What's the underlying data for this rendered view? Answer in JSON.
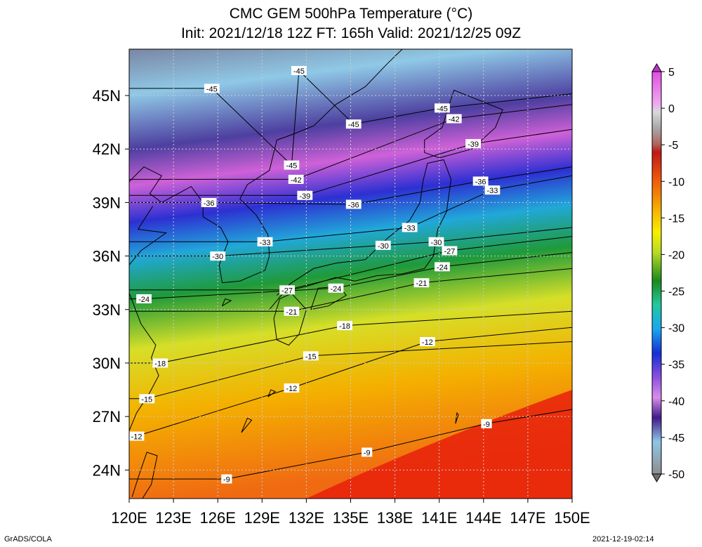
{
  "title": {
    "line1": "CMC GEM 500hPa Temperature (°C)",
    "line2": "Init: 2021/12/18 12Z  FT: 165h  Valid: 2021/12/25 09Z"
  },
  "footer": {
    "left": "GrADS/COLA",
    "right": "2021-12-19-02:14"
  },
  "chart_data": {
    "type": "heatmap",
    "variable": "500hPa Temperature (°C)",
    "xlabels": [
      "120E",
      "123E",
      "126E",
      "129E",
      "132E",
      "135E",
      "138E",
      "141E",
      "144E",
      "147E",
      "150E"
    ],
    "ylabels": [
      "45N",
      "42N",
      "39N",
      "36N",
      "33N",
      "30N",
      "27N",
      "24N"
    ],
    "lon_range": [
      120,
      150
    ],
    "lat_range": [
      22.4,
      47.6
    ],
    "color_range": [
      -50,
      5
    ],
    "colorbar_labels": [
      "5",
      "0",
      "-5",
      "-10",
      "-15",
      "-20",
      "-25",
      "-30",
      "-35",
      "-40",
      "-45",
      "-50"
    ],
    "contour_levels": [
      -9,
      -12,
      -15,
      -18,
      -21,
      -24,
      -27,
      -30,
      -33,
      -36,
      -39,
      -42,
      -45
    ],
    "contour_labels": [
      {
        "text": "-45",
        "lon": 131.5,
        "lat": 46.4
      },
      {
        "text": "-45",
        "lon": 125.6,
        "lat": 45.4
      },
      {
        "text": "-45",
        "lon": 135.2,
        "lat": 43.4
      },
      {
        "text": "-45",
        "lon": 131.0,
        "lat": 41.1
      },
      {
        "text": "-45",
        "lon": 141.2,
        "lat": 44.3
      },
      {
        "text": "-42",
        "lon": 142.0,
        "lat": 43.7
      },
      {
        "text": "-42",
        "lon": 131.3,
        "lat": 40.3
      },
      {
        "text": "-39",
        "lon": 143.3,
        "lat": 42.3
      },
      {
        "text": "-39",
        "lon": 131.9,
        "lat": 39.4
      },
      {
        "text": "-36",
        "lon": 143.8,
        "lat": 40.2
      },
      {
        "text": "-36",
        "lon": 125.4,
        "lat": 39.0
      },
      {
        "text": "-36",
        "lon": 135.2,
        "lat": 38.9
      },
      {
        "text": "-33",
        "lon": 144.6,
        "lat": 39.7
      },
      {
        "text": "-33",
        "lon": 139.0,
        "lat": 37.6
      },
      {
        "text": "-33",
        "lon": 129.2,
        "lat": 36.8
      },
      {
        "text": "-30",
        "lon": 140.8,
        "lat": 36.8
      },
      {
        "text": "-30",
        "lon": 137.2,
        "lat": 36.6
      },
      {
        "text": "-30",
        "lon": 126.0,
        "lat": 36.0
      },
      {
        "text": "-27",
        "lon": 141.7,
        "lat": 36.3
      },
      {
        "text": "-27",
        "lon": 130.7,
        "lat": 34.1
      },
      {
        "text": "-24",
        "lon": 141.2,
        "lat": 35.4
      },
      {
        "text": "-24",
        "lon": 134.0,
        "lat": 34.2
      },
      {
        "text": "-24",
        "lon": 121.0,
        "lat": 33.6
      },
      {
        "text": "-21",
        "lon": 139.8,
        "lat": 34.5
      },
      {
        "text": "-21",
        "lon": 131.0,
        "lat": 32.9
      },
      {
        "text": "-18",
        "lon": 134.6,
        "lat": 32.1
      },
      {
        "text": "-18",
        "lon": 122.1,
        "lat": 30.0
      },
      {
        "text": "-15",
        "lon": 132.3,
        "lat": 30.4
      },
      {
        "text": "-15",
        "lon": 121.2,
        "lat": 28.0
      },
      {
        "text": "-12",
        "lon": 140.2,
        "lat": 31.2
      },
      {
        "text": "-12",
        "lon": 131.0,
        "lat": 28.6
      },
      {
        "text": "-12",
        "lon": 120.5,
        "lat": 25.9
      },
      {
        "text": "-9",
        "lon": 144.2,
        "lat": 26.6
      },
      {
        "text": "-9",
        "lon": 136.1,
        "lat": 25.0
      },
      {
        "text": "-9",
        "lon": 126.6,
        "lat": 23.5
      }
    ]
  }
}
